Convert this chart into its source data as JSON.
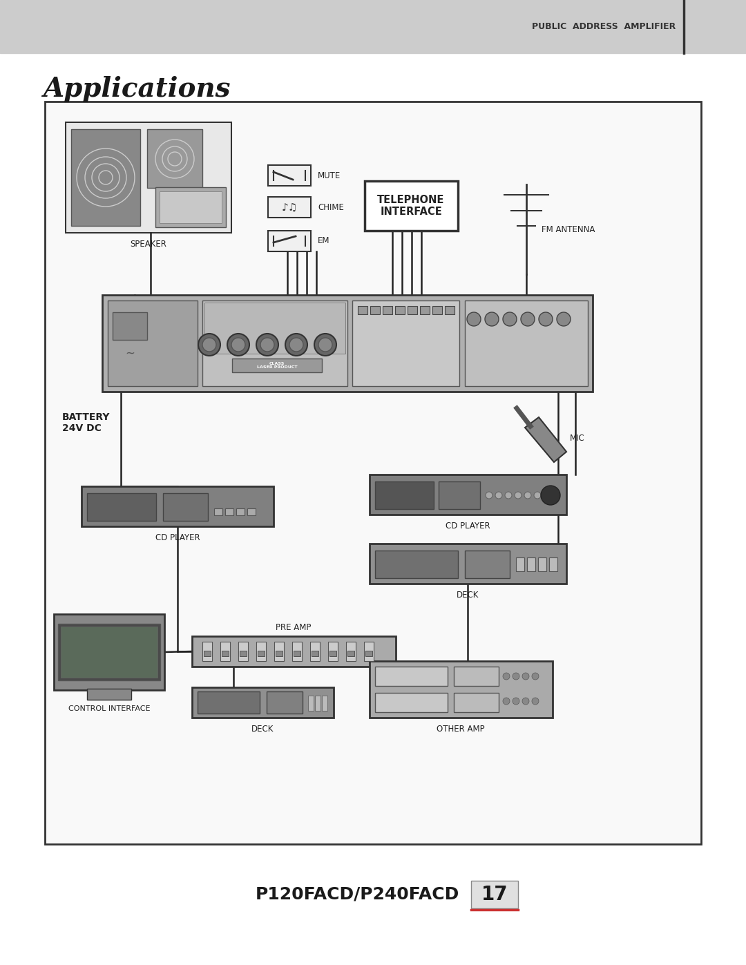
{
  "page_bg": "#ffffff",
  "header_bg": "#cccccc",
  "header_text": "PUBLIC  ADDRESS  AMPLIFIER",
  "header_line_color": "#333333",
  "title": "Applications",
  "title_color": "#1a1a1a",
  "model_text": "P120FACD/P240FACD",
  "page_number": "17",
  "page_num_bg": "#e0e0e0",
  "diagram_border_color": "#333333",
  "labels": {
    "speaker": "SPEAKER",
    "mute": "MUTE",
    "chime": "CHIME",
    "em": "EM",
    "telephone": "TELEPHONE\nINTERFACE",
    "fm_antenna": "FM ANTENNA",
    "battery": "BATTERY\n24V DC",
    "mic": "MIC",
    "cd_player_right": "CD PLAYER",
    "cd_player_left": "CD PLAYER",
    "deck_right": "DECK",
    "deck_left": "DECK",
    "pre_amp": "PRE AMP",
    "control_interface": "CONTROL INTERFACE",
    "other_amp": "OTHER AMP"
  }
}
